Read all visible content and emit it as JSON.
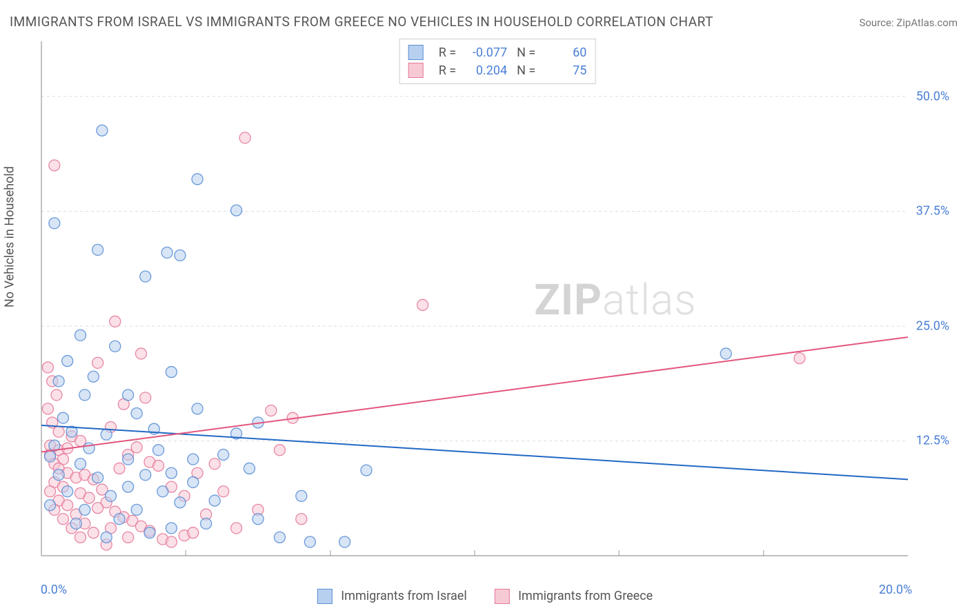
{
  "title": "IMMIGRANTS FROM ISRAEL VS IMMIGRANTS FROM GREECE NO VEHICLES IN HOUSEHOLD CORRELATION CHART",
  "source_label": "Source: ZipAtlas.com",
  "ylabel": "No Vehicles in Household",
  "watermark": {
    "bold": "ZIP",
    "rest": "atlas"
  },
  "colors": {
    "blue_fill": "#b8d0ef",
    "blue_stroke": "#5a8fd6",
    "blue_line": "#2268c4",
    "pink_fill": "#f7c9d4",
    "pink_stroke": "#e47a9a",
    "pink_line": "#e2557e",
    "grid": "#dddddd",
    "axis": "#999999",
    "tick_label": "#4a7fd6",
    "text": "#555555"
  },
  "chart": {
    "type": "scatter-with-regression",
    "xlim": [
      0,
      20
    ],
    "ylim": [
      0,
      56
    ],
    "xticks": [
      0,
      20
    ],
    "xtick_labels": [
      "0.0%",
      "20.0%"
    ],
    "yticks": [
      12.5,
      25,
      37.5,
      50
    ],
    "ytick_labels": [
      "12.5%",
      "25.0%",
      "37.5%",
      "50.0%"
    ],
    "minor_x_visible": [
      3.33,
      6.67,
      10,
      13.33,
      16.67
    ],
    "marker_radius": 8,
    "marker_opacity": 0.55,
    "line_width": 2
  },
  "stats": {
    "series1": {
      "R_label": "R =",
      "R": "-0.077",
      "N_label": "N =",
      "N": "60"
    },
    "series2": {
      "R_label": "R =",
      "R": "0.204",
      "N_label": "N =",
      "N": "75"
    }
  },
  "bottom_legend": {
    "s1": "Immigrants from Israel",
    "s2": "Immigrants from Greece"
  },
  "series_blue": {
    "regression": {
      "x1": 0,
      "y1": 14.2,
      "x2": 20,
      "y2": 8.3
    },
    "points": [
      [
        0.3,
        36.2
      ],
      [
        1.4,
        46.3
      ],
      [
        3.6,
        41.0
      ],
      [
        4.5,
        37.6
      ],
      [
        2.9,
        33.0
      ],
      [
        3.2,
        32.7
      ],
      [
        2.4,
        30.4
      ],
      [
        1.3,
        33.3
      ],
      [
        0.9,
        24.0
      ],
      [
        0.6,
        21.2
      ],
      [
        1.7,
        22.8
      ],
      [
        1.2,
        19.5
      ],
      [
        0.4,
        19.0
      ],
      [
        1.0,
        17.5
      ],
      [
        2.0,
        17.5
      ],
      [
        0.5,
        15.0
      ],
      [
        2.2,
        15.5
      ],
      [
        0.7,
        13.5
      ],
      [
        1.5,
        13.2
      ],
      [
        2.6,
        13.8
      ],
      [
        0.3,
        12.0
      ],
      [
        1.1,
        11.7
      ],
      [
        0.2,
        10.8
      ],
      [
        0.9,
        10.0
      ],
      [
        2.0,
        10.5
      ],
      [
        0.4,
        8.8
      ],
      [
        1.3,
        8.5
      ],
      [
        2.4,
        8.8
      ],
      [
        3.0,
        9.0
      ],
      [
        0.6,
        7.0
      ],
      [
        1.6,
        6.5
      ],
      [
        2.8,
        7.0
      ],
      [
        0.2,
        5.5
      ],
      [
        1.0,
        5.0
      ],
      [
        2.2,
        5.0
      ],
      [
        3.2,
        5.8
      ],
      [
        4.0,
        6.0
      ],
      [
        3.5,
        10.5
      ],
      [
        4.2,
        11.0
      ],
      [
        4.8,
        9.5
      ],
      [
        5.0,
        4.0
      ],
      [
        5.5,
        2.0
      ],
      [
        6.0,
        6.5
      ],
      [
        6.2,
        1.5
      ],
      [
        7.0,
        1.5
      ],
      [
        7.5,
        9.3
      ],
      [
        4.5,
        13.3
      ],
      [
        3.6,
        16.0
      ],
      [
        5.0,
        14.5
      ],
      [
        3.0,
        20.0
      ],
      [
        2.7,
        11.5
      ],
      [
        3.5,
        8.0
      ],
      [
        2.0,
        7.5
      ],
      [
        1.8,
        4.0
      ],
      [
        0.8,
        3.5
      ],
      [
        1.5,
        2.0
      ],
      [
        2.5,
        2.5
      ],
      [
        3.0,
        3.0
      ],
      [
        3.8,
        3.5
      ],
      [
        15.8,
        22.0
      ]
    ]
  },
  "series_pink": {
    "regression": {
      "x1": 0,
      "y1": 11.3,
      "x2": 20,
      "y2": 23.8
    },
    "points": [
      [
        0.3,
        42.5
      ],
      [
        4.7,
        45.5
      ],
      [
        8.8,
        27.3
      ],
      [
        17.5,
        21.5
      ],
      [
        0.2,
        12.0
      ],
      [
        0.4,
        11.5
      ],
      [
        0.6,
        11.7
      ],
      [
        0.2,
        11.0
      ],
      [
        0.5,
        10.5
      ],
      [
        0.3,
        10.0
      ],
      [
        0.7,
        13.0
      ],
      [
        0.9,
        12.5
      ],
      [
        0.4,
        9.5
      ],
      [
        0.6,
        9.0
      ],
      [
        0.8,
        8.5
      ],
      [
        0.3,
        8.0
      ],
      [
        0.5,
        7.5
      ],
      [
        1.0,
        8.8
      ],
      [
        1.2,
        8.3
      ],
      [
        0.2,
        7.0
      ],
      [
        0.9,
        6.8
      ],
      [
        1.4,
        7.2
      ],
      [
        0.4,
        6.0
      ],
      [
        1.1,
        6.3
      ],
      [
        0.6,
        5.5
      ],
      [
        1.5,
        5.8
      ],
      [
        0.3,
        5.0
      ],
      [
        1.3,
        5.2
      ],
      [
        0.8,
        4.5
      ],
      [
        1.7,
        4.8
      ],
      [
        0.5,
        4.0
      ],
      [
        1.9,
        4.2
      ],
      [
        1.0,
        3.5
      ],
      [
        2.1,
        3.8
      ],
      [
        0.7,
        3.0
      ],
      [
        1.6,
        3.0
      ],
      [
        2.3,
        3.2
      ],
      [
        1.2,
        2.5
      ],
      [
        2.5,
        2.7
      ],
      [
        0.9,
        2.0
      ],
      [
        2.0,
        2.0
      ],
      [
        2.8,
        1.8
      ],
      [
        1.5,
        1.2
      ],
      [
        3.0,
        1.5
      ],
      [
        3.3,
        2.2
      ],
      [
        3.5,
        2.5
      ],
      [
        1.8,
        9.5
      ],
      [
        2.0,
        11.0
      ],
      [
        2.2,
        11.8
      ],
      [
        2.5,
        10.2
      ],
      [
        1.6,
        14.0
      ],
      [
        1.9,
        16.5
      ],
      [
        1.3,
        21.0
      ],
      [
        1.7,
        25.5
      ],
      [
        2.4,
        17.2
      ],
      [
        2.3,
        22.0
      ],
      [
        2.7,
        9.8
      ],
      [
        3.0,
        7.5
      ],
      [
        3.3,
        6.5
      ],
      [
        3.6,
        9.0
      ],
      [
        3.8,
        4.5
      ],
      [
        4.0,
        10.0
      ],
      [
        4.2,
        7.0
      ],
      [
        4.5,
        3.0
      ],
      [
        5.0,
        5.0
      ],
      [
        5.3,
        15.8
      ],
      [
        5.5,
        11.5
      ],
      [
        5.8,
        15.0
      ],
      [
        6.0,
        4.0
      ],
      [
        0.15,
        20.5
      ],
      [
        0.25,
        19.0
      ],
      [
        0.35,
        17.5
      ],
      [
        0.15,
        16.0
      ],
      [
        0.25,
        14.5
      ],
      [
        0.4,
        13.5
      ]
    ]
  }
}
